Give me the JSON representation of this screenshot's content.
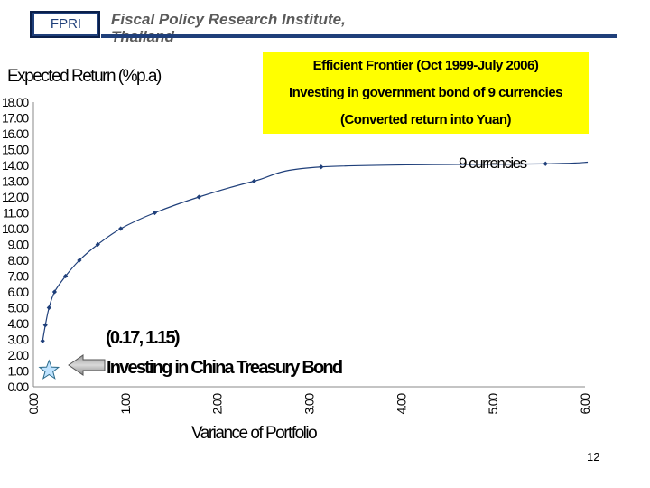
{
  "header": {
    "badge": "FPRI",
    "title": "Fiscal Policy Research Institute, Thailand"
  },
  "slide": {
    "page_number": "12"
  },
  "chart_data": {
    "type": "line",
    "title_lines": [
      "Efficient Frontier (Oct 1999-July 2006)",
      "Investing in government bond of 9 currencies",
      "(Converted return into Yuan)"
    ],
    "ylabel": "Expected Return (%p.a)",
    "xlabel": "Variance of Portfolio",
    "xlim": [
      0,
      6
    ],
    "ylim": [
      0,
      18
    ],
    "x_ticks": [
      "0.00",
      "1.00",
      "2.00",
      "3.00",
      "4.00",
      "5.00",
      "6.00"
    ],
    "y_ticks": [
      "0.00",
      "1.00",
      "2.00",
      "3.00",
      "4.00",
      "5.00",
      "6.00",
      "7.00",
      "8.00",
      "9.00",
      "10.00",
      "11.00",
      "12.00",
      "13.00",
      "14.00",
      "15.00",
      "16.00",
      "17.00",
      "18.00"
    ],
    "series": [
      {
        "name": "9 currencies",
        "color": "#1f3f7a",
        "x": [
          0.1,
          0.13,
          0.17,
          0.23,
          0.35,
          0.5,
          0.7,
          0.95,
          1.32,
          1.8,
          2.4,
          3.13,
          5.57,
          6.03
        ],
        "y": [
          2.9,
          3.9,
          5.0,
          6.0,
          7.0,
          8.0,
          9.0,
          10.0,
          11.0,
          12.0,
          13.0,
          13.9,
          14.1,
          14.2
        ],
        "markers": [
          true,
          true,
          true,
          true,
          true,
          true,
          true,
          true,
          true,
          true,
          true,
          true,
          true,
          false
        ]
      }
    ],
    "annotations": [
      {
        "text": "(0.17, 1.15)",
        "x": 0.17,
        "y": 1.15,
        "marker": "star",
        "marker_color": "#bfe3ff"
      },
      {
        "text": "Investing in China Treasury Bond",
        "arrow": "left"
      }
    ]
  }
}
